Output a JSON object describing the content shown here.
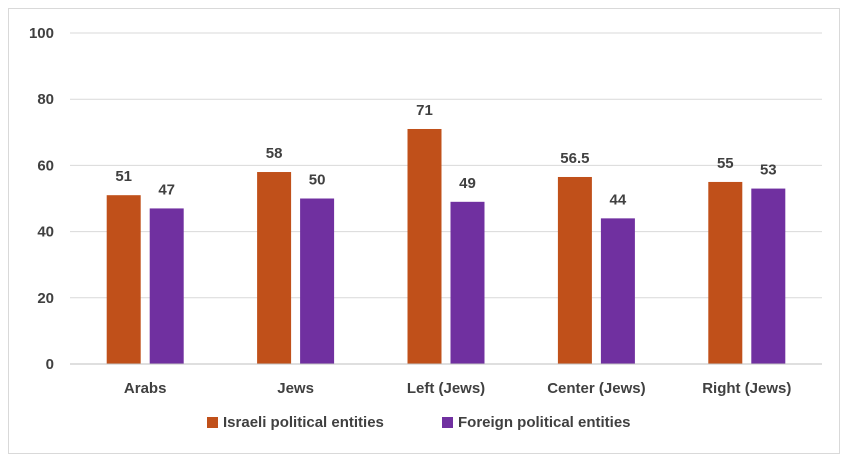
{
  "chart_data": {
    "type": "bar",
    "title": "",
    "xlabel": "",
    "ylabel": "",
    "ylim": [
      0,
      100
    ],
    "yticks": [
      0,
      20,
      40,
      60,
      80,
      100
    ],
    "grid": true,
    "legend_position": "bottom",
    "categories": [
      "Arabs",
      "Jews",
      "Left (Jews)",
      "Center (Jews)",
      "Right (Jews)"
    ],
    "series": [
      {
        "name": "Israeli political entities",
        "color": "#c0501a",
        "values": [
          51,
          58,
          71,
          56.5,
          55
        ],
        "labels": [
          "51",
          "58",
          "71",
          "56.5",
          "55"
        ]
      },
      {
        "name": "Foreign political entities",
        "color": "#7030a0",
        "values": [
          47,
          50,
          49,
          44,
          53
        ],
        "labels": [
          "47",
          "50",
          "49",
          "44",
          "53"
        ]
      }
    ]
  }
}
